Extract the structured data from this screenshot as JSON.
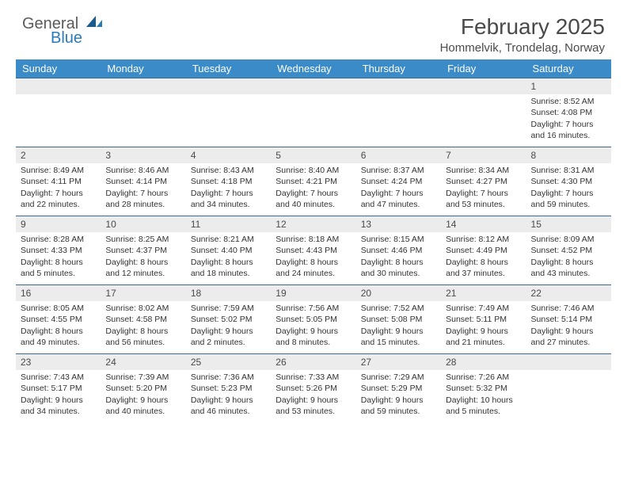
{
  "logo": {
    "text1": "General",
    "text2": "Blue"
  },
  "title": "February 2025",
  "location": "Hommelvik, Trondelag, Norway",
  "colors": {
    "header_bg": "#3b8bc9",
    "header_text": "#ffffff",
    "daynum_bg": "#ececec",
    "border": "#3b6a8f",
    "logo_blue": "#2a7ab9",
    "text": "#333333"
  },
  "weekdays": [
    "Sunday",
    "Monday",
    "Tuesday",
    "Wednesday",
    "Thursday",
    "Friday",
    "Saturday"
  ],
  "weeks": [
    [
      null,
      null,
      null,
      null,
      null,
      null,
      {
        "n": "1",
        "sr": "Sunrise: 8:52 AM",
        "ss": "Sunset: 4:08 PM",
        "d1": "Daylight: 7 hours",
        "d2": "and 16 minutes."
      }
    ],
    [
      {
        "n": "2",
        "sr": "Sunrise: 8:49 AM",
        "ss": "Sunset: 4:11 PM",
        "d1": "Daylight: 7 hours",
        "d2": "and 22 minutes."
      },
      {
        "n": "3",
        "sr": "Sunrise: 8:46 AM",
        "ss": "Sunset: 4:14 PM",
        "d1": "Daylight: 7 hours",
        "d2": "and 28 minutes."
      },
      {
        "n": "4",
        "sr": "Sunrise: 8:43 AM",
        "ss": "Sunset: 4:18 PM",
        "d1": "Daylight: 7 hours",
        "d2": "and 34 minutes."
      },
      {
        "n": "5",
        "sr": "Sunrise: 8:40 AM",
        "ss": "Sunset: 4:21 PM",
        "d1": "Daylight: 7 hours",
        "d2": "and 40 minutes."
      },
      {
        "n": "6",
        "sr": "Sunrise: 8:37 AM",
        "ss": "Sunset: 4:24 PM",
        "d1": "Daylight: 7 hours",
        "d2": "and 47 minutes."
      },
      {
        "n": "7",
        "sr": "Sunrise: 8:34 AM",
        "ss": "Sunset: 4:27 PM",
        "d1": "Daylight: 7 hours",
        "d2": "and 53 minutes."
      },
      {
        "n": "8",
        "sr": "Sunrise: 8:31 AM",
        "ss": "Sunset: 4:30 PM",
        "d1": "Daylight: 7 hours",
        "d2": "and 59 minutes."
      }
    ],
    [
      {
        "n": "9",
        "sr": "Sunrise: 8:28 AM",
        "ss": "Sunset: 4:33 PM",
        "d1": "Daylight: 8 hours",
        "d2": "and 5 minutes."
      },
      {
        "n": "10",
        "sr": "Sunrise: 8:25 AM",
        "ss": "Sunset: 4:37 PM",
        "d1": "Daylight: 8 hours",
        "d2": "and 12 minutes."
      },
      {
        "n": "11",
        "sr": "Sunrise: 8:21 AM",
        "ss": "Sunset: 4:40 PM",
        "d1": "Daylight: 8 hours",
        "d2": "and 18 minutes."
      },
      {
        "n": "12",
        "sr": "Sunrise: 8:18 AM",
        "ss": "Sunset: 4:43 PM",
        "d1": "Daylight: 8 hours",
        "d2": "and 24 minutes."
      },
      {
        "n": "13",
        "sr": "Sunrise: 8:15 AM",
        "ss": "Sunset: 4:46 PM",
        "d1": "Daylight: 8 hours",
        "d2": "and 30 minutes."
      },
      {
        "n": "14",
        "sr": "Sunrise: 8:12 AM",
        "ss": "Sunset: 4:49 PM",
        "d1": "Daylight: 8 hours",
        "d2": "and 37 minutes."
      },
      {
        "n": "15",
        "sr": "Sunrise: 8:09 AM",
        "ss": "Sunset: 4:52 PM",
        "d1": "Daylight: 8 hours",
        "d2": "and 43 minutes."
      }
    ],
    [
      {
        "n": "16",
        "sr": "Sunrise: 8:05 AM",
        "ss": "Sunset: 4:55 PM",
        "d1": "Daylight: 8 hours",
        "d2": "and 49 minutes."
      },
      {
        "n": "17",
        "sr": "Sunrise: 8:02 AM",
        "ss": "Sunset: 4:58 PM",
        "d1": "Daylight: 8 hours",
        "d2": "and 56 minutes."
      },
      {
        "n": "18",
        "sr": "Sunrise: 7:59 AM",
        "ss": "Sunset: 5:02 PM",
        "d1": "Daylight: 9 hours",
        "d2": "and 2 minutes."
      },
      {
        "n": "19",
        "sr": "Sunrise: 7:56 AM",
        "ss": "Sunset: 5:05 PM",
        "d1": "Daylight: 9 hours",
        "d2": "and 8 minutes."
      },
      {
        "n": "20",
        "sr": "Sunrise: 7:52 AM",
        "ss": "Sunset: 5:08 PM",
        "d1": "Daylight: 9 hours",
        "d2": "and 15 minutes."
      },
      {
        "n": "21",
        "sr": "Sunrise: 7:49 AM",
        "ss": "Sunset: 5:11 PM",
        "d1": "Daylight: 9 hours",
        "d2": "and 21 minutes."
      },
      {
        "n": "22",
        "sr": "Sunrise: 7:46 AM",
        "ss": "Sunset: 5:14 PM",
        "d1": "Daylight: 9 hours",
        "d2": "and 27 minutes."
      }
    ],
    [
      {
        "n": "23",
        "sr": "Sunrise: 7:43 AM",
        "ss": "Sunset: 5:17 PM",
        "d1": "Daylight: 9 hours",
        "d2": "and 34 minutes."
      },
      {
        "n": "24",
        "sr": "Sunrise: 7:39 AM",
        "ss": "Sunset: 5:20 PM",
        "d1": "Daylight: 9 hours",
        "d2": "and 40 minutes."
      },
      {
        "n": "25",
        "sr": "Sunrise: 7:36 AM",
        "ss": "Sunset: 5:23 PM",
        "d1": "Daylight: 9 hours",
        "d2": "and 46 minutes."
      },
      {
        "n": "26",
        "sr": "Sunrise: 7:33 AM",
        "ss": "Sunset: 5:26 PM",
        "d1": "Daylight: 9 hours",
        "d2": "and 53 minutes."
      },
      {
        "n": "27",
        "sr": "Sunrise: 7:29 AM",
        "ss": "Sunset: 5:29 PM",
        "d1": "Daylight: 9 hours",
        "d2": "and 59 minutes."
      },
      {
        "n": "28",
        "sr": "Sunrise: 7:26 AM",
        "ss": "Sunset: 5:32 PM",
        "d1": "Daylight: 10 hours",
        "d2": "and 5 minutes."
      },
      null
    ]
  ]
}
